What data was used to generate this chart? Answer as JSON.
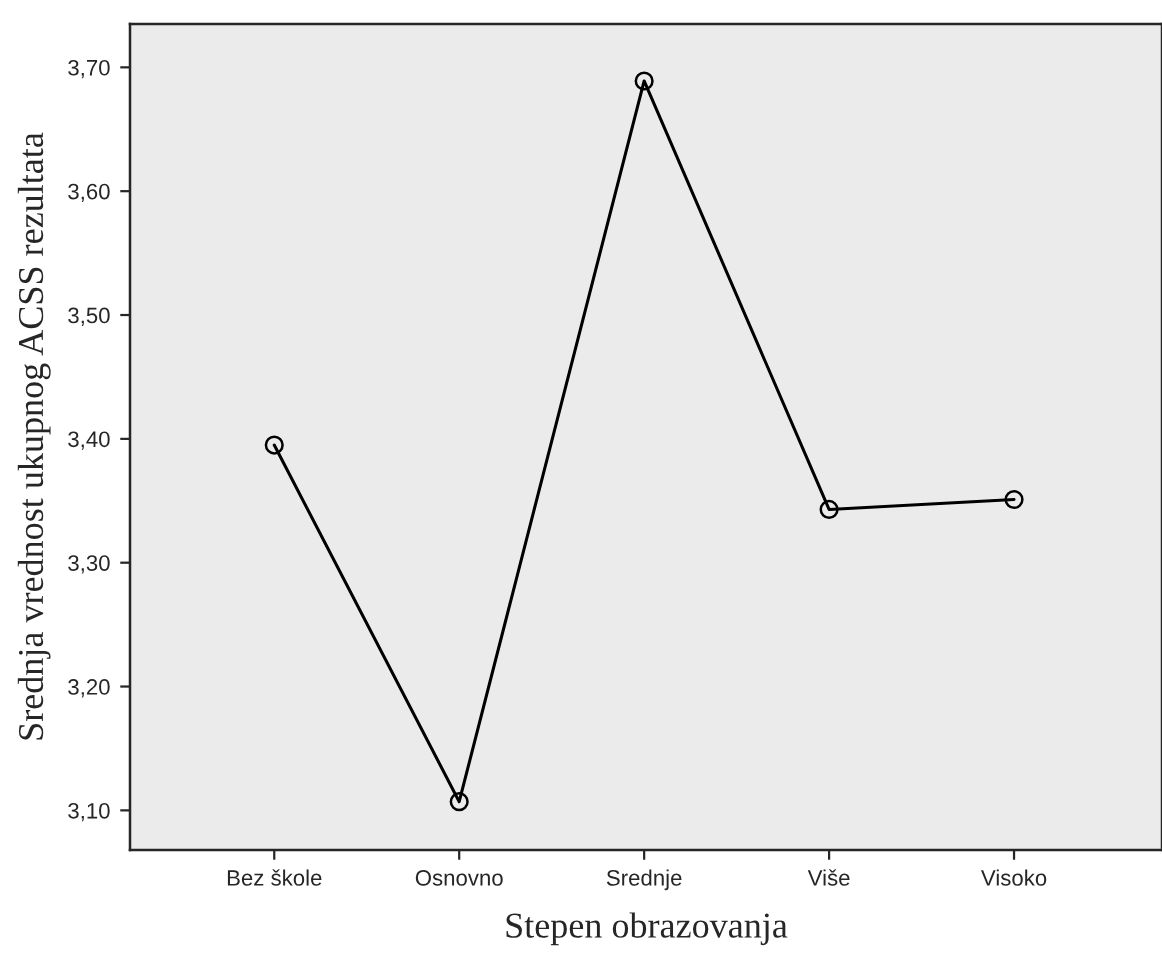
{
  "chart_data": {
    "type": "line",
    "xlabel": "Stepen obrazovanja",
    "ylabel": "Srednja vrednost ukupnog ACSS rezultata",
    "categories": [
      "Bez škole",
      "Osnovno",
      "Srednje",
      "Više",
      "Visoko"
    ],
    "series": [
      {
        "color": "#000000",
        "values": [
          3.395,
          3.107,
          3.689,
          3.343,
          3.351
        ]
      }
    ],
    "ylim": [
      3.068,
      3.735
    ],
    "yticks": [
      {
        "value": 3.1,
        "label": "3,10"
      },
      {
        "value": 3.2,
        "label": "3,20"
      },
      {
        "value": 3.3,
        "label": "3,30"
      },
      {
        "value": 3.4,
        "label": "3,40"
      },
      {
        "value": 3.5,
        "label": "3,50"
      },
      {
        "value": 3.6,
        "label": "3,60"
      },
      {
        "value": 3.7,
        "label": "3,70"
      }
    ],
    "marker": "circle",
    "line_style": "solid",
    "grid": false,
    "legend": false
  }
}
